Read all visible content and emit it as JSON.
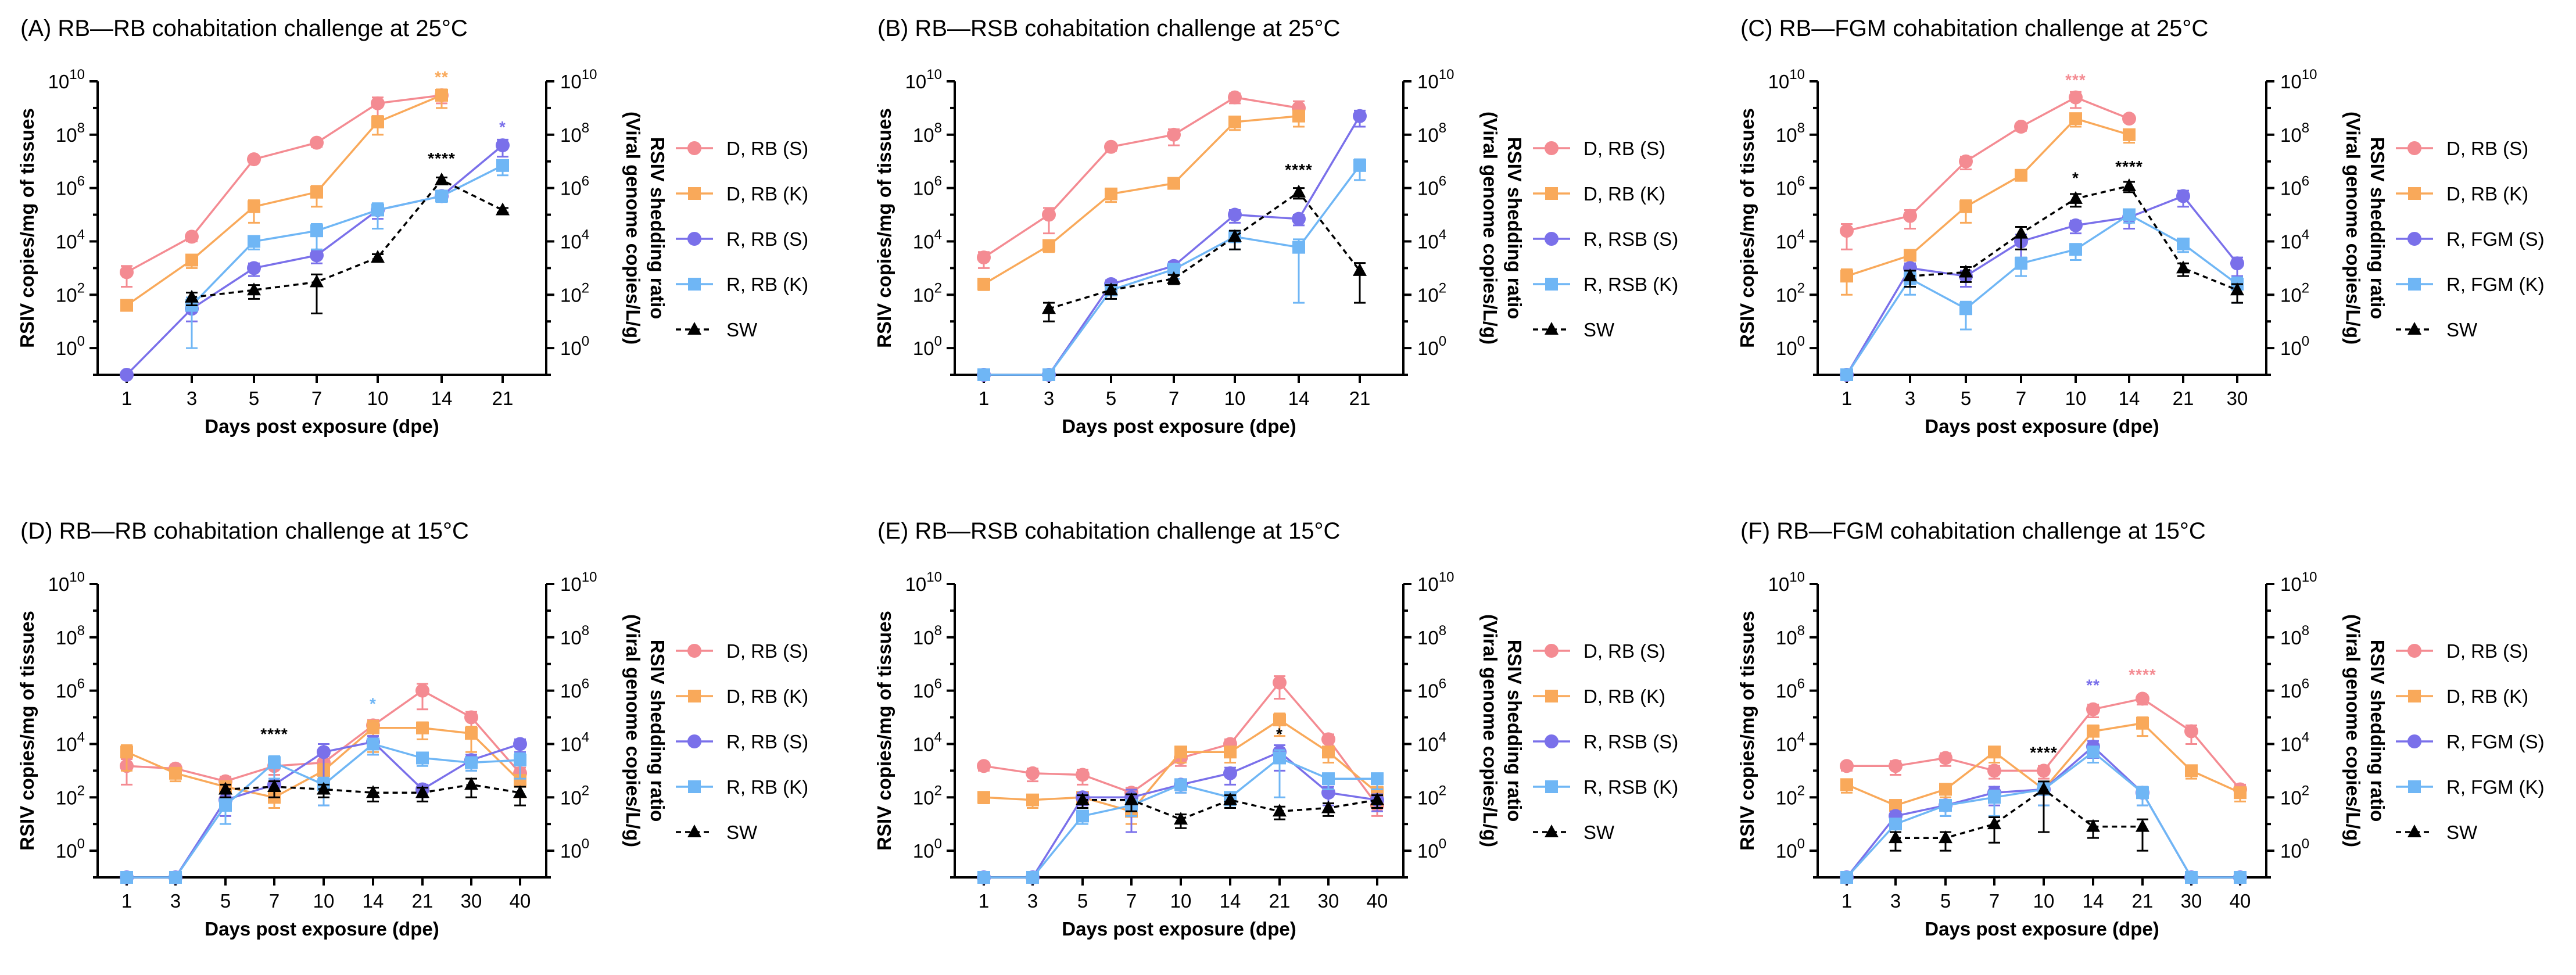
{
  "colors": {
    "D, RB (S)": "#F48B92",
    "D, RB (K)": "#F9A95A",
    "R, RB (S)": "#7A70EA",
    "R, RSB (S)": "#7A70EA",
    "R, FGM (S)": "#7A70EA",
    "R, RB (K)": "#6FB6F5",
    "R, RSB (K)": "#6FB6F5",
    "R, FGM (K)": "#6FB6F5",
    "SW": "#000000"
  },
  "chart_data": [
    {
      "type": "line",
      "title": "(A) RB—RB cohabitation challenge at 25°C",
      "xlabel": "Days post exposure (dpe)",
      "ylabel": "RSIV copies/mg of tissues",
      "y2label": "RSIV shedding ratio\n(Viral genome copies/L/g)",
      "yscale": "log",
      "ylim": [
        0.1,
        10000000000
      ],
      "categories": [
        "1",
        "3",
        "5",
        "7",
        "10",
        "14",
        "21"
      ],
      "legend": "right",
      "series": [
        {
          "name": "D, RB (S)",
          "marker": "circle",
          "values": [
            700,
            15000,
            12000000,
            50000000,
            1500000000,
            3000000000,
            null
          ],
          "err": [
            500,
            5000,
            2000000,
            15000000,
            1000000000,
            1500000000,
            null
          ]
        },
        {
          "name": "D, RB (K)",
          "marker": "square",
          "values": [
            40,
            2000,
            200000,
            700000,
            300000000,
            3000000000,
            null
          ],
          "err": [
            10,
            1000,
            150000,
            500000,
            200000000,
            2000000000,
            null
          ]
        },
        {
          "name": "R, RB (S)",
          "marker": "circle",
          "values": [
            0.1,
            30,
            1000,
            3000,
            150000,
            500000,
            40000000
          ],
          "err": [
            0,
            20,
            500,
            1500,
            80000,
            150000,
            25000000
          ]
        },
        {
          "name": "R, RB (K)",
          "marker": "square",
          "values": [
            null,
            40,
            10000,
            25000,
            150000,
            500000,
            7000000
          ],
          "err": [
            null,
            39,
            5000,
            20000,
            120000,
            200000,
            4000000
          ]
        },
        {
          "name": "SW",
          "marker": "triangle",
          "dashed": true,
          "values": [
            null,
            80,
            150,
            300,
            2500,
            2000000,
            150000
          ],
          "err": [
            null,
            40,
            80,
            280,
            800,
            500000,
            30000
          ]
        }
      ],
      "annotations": [
        {
          "text": "**",
          "x": "14",
          "y": 9000000000,
          "color": "#F9A95A"
        },
        {
          "text": "*",
          "x": "21",
          "y": 120000000,
          "color": "#7A70EA"
        },
        {
          "text": "****",
          "x": "14",
          "y": 8000000,
          "color": "#000000"
        }
      ]
    },
    {
      "type": "line",
      "title": "(B) RB—RSB cohabitation challenge at 25°C",
      "xlabel": "Days post exposure (dpe)",
      "ylabel": "RSIV copies/mg of tissues",
      "y2label": "RSIV shedding ratio\n(Viral genome copies/L/g)",
      "yscale": "log",
      "ylim": [
        0.1,
        10000000000
      ],
      "categories": [
        "1",
        "3",
        "5",
        "7",
        "10",
        "14",
        "21"
      ],
      "legend": "right",
      "series": [
        {
          "name": "D, RB (S)",
          "marker": "circle",
          "values": [
            2500,
            100000,
            35000000,
            100000000,
            2500000000,
            1000000000,
            null
          ],
          "err": [
            1500,
            80000,
            10000000,
            60000000,
            1000000000,
            800000000,
            null
          ]
        },
        {
          "name": "D, RB (K)",
          "marker": "square",
          "values": [
            250,
            7000,
            600000,
            1500000,
            300000000,
            500000000,
            null
          ],
          "err": [
            100,
            3000,
            300000,
            500000,
            150000000,
            300000000,
            null
          ]
        },
        {
          "name": "R, RSB (S)",
          "marker": "circle",
          "values": [
            0.1,
            0.1,
            250,
            1200,
            100000,
            70000,
            500000000
          ],
          "err": [
            0,
            0,
            100,
            500,
            50000,
            30000,
            300000000
          ]
        },
        {
          "name": "R, RSB (K)",
          "marker": "square",
          "values": [
            0.1,
            0.1,
            150,
            900,
            15000,
            6000,
            7000000
          ],
          "err": [
            0,
            0,
            80,
            500,
            10000,
            5950,
            5000000
          ]
        },
        {
          "name": "SW",
          "marker": "triangle",
          "dashed": true,
          "values": [
            null,
            30,
            150,
            400,
            15000,
            700000,
            800
          ],
          "err": [
            null,
            20,
            80,
            150,
            10000,
            300000,
            750
          ]
        }
      ],
      "annotations": [
        {
          "text": "****",
          "x": "14",
          "y": 3000000,
          "color": "#000000"
        }
      ]
    },
    {
      "type": "line",
      "title": "(C) RB—FGM cohabitation challenge at 25°C",
      "xlabel": "Days post exposure (dpe)",
      "ylabel": "RSIV copies/mg of tissues",
      "y2label": "RSIV shedding ratio\n(Viral genome copies/L/g)",
      "yscale": "log",
      "ylim": [
        0.1,
        10000000000
      ],
      "categories": [
        "1",
        "3",
        "5",
        "7",
        "10",
        "14",
        "21",
        "30"
      ],
      "legend": "right",
      "series": [
        {
          "name": "D, RB (S)",
          "marker": "circle",
          "values": [
            25000,
            90000,
            10000000,
            200000000,
            2500000000,
            400000000,
            null,
            null
          ],
          "err": [
            20000,
            60000,
            5000000,
            60000000,
            1500000000,
            100000000,
            null,
            null
          ]
        },
        {
          "name": "D, RB (K)",
          "marker": "square",
          "values": [
            500,
            3000,
            200000,
            3000000,
            400000000,
            100000000,
            null,
            null
          ],
          "err": [
            400,
            1500,
            150000,
            1000000,
            200000000,
            50000000,
            null,
            null
          ]
        },
        {
          "name": "R, FGM (S)",
          "marker": "circle",
          "values": [
            0.1,
            1000,
            500,
            10000,
            40000,
            80000,
            500000,
            1500
          ],
          "err": [
            0,
            500,
            300,
            8000,
            20000,
            50000,
            300000,
            1000
          ]
        },
        {
          "name": "R, FGM (K)",
          "marker": "square",
          "values": [
            0.1,
            400,
            30,
            1500,
            5000,
            100000,
            8000,
            250
          ],
          "err": [
            0,
            300,
            25,
            1000,
            3000,
            50000,
            4000,
            200
          ]
        },
        {
          "name": "SW",
          "marker": "triangle",
          "dashed": true,
          "values": [
            null,
            500,
            700,
            20000,
            400000,
            1200000,
            1000,
            150
          ],
          "err": [
            null,
            300,
            400,
            15000,
            200000,
            500000,
            500,
            100
          ]
        }
      ],
      "annotations": [
        {
          "text": "***",
          "x": "10",
          "y": 7000000000,
          "color": "#F48B92"
        },
        {
          "text": "*",
          "x": "10",
          "y": 1500000,
          "color": "#000000"
        },
        {
          "text": "****",
          "x": "14",
          "y": 4000000,
          "color": "#000000"
        }
      ]
    },
    {
      "type": "line",
      "title": "(D) RB—RB cohabitation challenge at 15°C",
      "xlabel": "Days post exposure (dpe)",
      "ylabel": "RSIV copies/mg of tissues",
      "y2label": "RSIV shedding ratio\n(Viral genome copies/L/g)",
      "yscale": "log",
      "ylim": [
        0.1,
        10000000000
      ],
      "categories": [
        "1",
        "3",
        "5",
        "7",
        "10",
        "14",
        "21",
        "30",
        "40"
      ],
      "legend": "right",
      "series": [
        {
          "name": "D, RB (S)",
          "marker": "circle",
          "values": [
            1500,
            1200,
            400,
            1500,
            2000,
            50000,
            1000000,
            100000,
            800
          ],
          "err": [
            1200,
            500,
            200,
            800,
            1500,
            30000,
            800000,
            60000,
            500
          ]
        },
        {
          "name": "D, RB (K)",
          "marker": "square",
          "values": [
            5000,
            800,
            250,
            100,
            1000,
            40000,
            40000,
            25000,
            400
          ],
          "err": [
            4000,
            400,
            150,
            60,
            800,
            35000,
            25000,
            20000,
            300
          ]
        },
        {
          "name": "R, RB (S)",
          "marker": "circle",
          "values": [
            0.1,
            0.1,
            80,
            300,
            5000,
            12000,
            200,
            2500,
            10000
          ],
          "err": [
            0,
            0,
            60,
            200,
            4950,
            8000,
            100,
            1500,
            5000
          ]
        },
        {
          "name": "R, RB (K)",
          "marker": "square",
          "values": [
            0.1,
            0.1,
            50,
            2000,
            300,
            10000,
            3000,
            2000,
            2500
          ],
          "err": [
            0,
            0,
            40,
            1500,
            250,
            6000,
            1500,
            1000,
            2000
          ]
        },
        {
          "name": "SW",
          "marker": "triangle",
          "dashed": true,
          "values": [
            null,
            null,
            200,
            250,
            200,
            150,
            150,
            300,
            150
          ],
          "err": [
            null,
            null,
            100,
            150,
            100,
            80,
            80,
            200,
            100
          ]
        }
      ],
      "annotations": [
        {
          "text": "****",
          "x": "7",
          "y": 15000,
          "color": "#000000"
        },
        {
          "text": "*",
          "x": "14",
          "y": 200000,
          "color": "#6FB6F5"
        }
      ]
    },
    {
      "type": "line",
      "title": "(E) RB—RSB cohabitation challenge at 15°C",
      "xlabel": "Days post exposure (dpe)",
      "ylabel": "RSIV copies/mg of tissues",
      "y2label": "RSIV shedding ratio\n(Viral genome copies/L/g)",
      "yscale": "log",
      "ylim": [
        0.1,
        10000000000
      ],
      "categories": [
        "1",
        "3",
        "5",
        "7",
        "10",
        "14",
        "21",
        "30",
        "40"
      ],
      "legend": "right",
      "series": [
        {
          "name": "D, RB (S)",
          "marker": "circle",
          "values": [
            1500,
            800,
            700,
            150,
            3000,
            10000,
            2000000,
            15000,
            50
          ],
          "err": [
            500,
            400,
            400,
            80,
            1500,
            5000,
            1500000,
            8000,
            30
          ]
        },
        {
          "name": "D, RB (K)",
          "marker": "square",
          "values": [
            100,
            80,
            100,
            30,
            5000,
            5000,
            80000,
            5000,
            150
          ],
          "err": [
            40,
            40,
            60,
            20,
            3000,
            3000,
            60000,
            3000,
            100
          ]
        },
        {
          "name": "R, RSB (S)",
          "marker": "circle",
          "values": [
            0.1,
            0.1,
            100,
            100,
            300,
            800,
            5000,
            150,
            80
          ],
          "err": [
            0,
            0,
            50,
            95,
            150,
            500,
            4000,
            100,
            50
          ]
        },
        {
          "name": "R, RSB (K)",
          "marker": "square",
          "values": [
            0.1,
            0.1,
            20,
            50,
            300,
            100,
            3000,
            500,
            500
          ],
          "err": [
            0,
            0,
            10,
            30,
            150,
            50,
            2900,
            300,
            300
          ]
        },
        {
          "name": "SW",
          "marker": "triangle",
          "dashed": true,
          "values": [
            null,
            null,
            80,
            80,
            15,
            80,
            30,
            40,
            80
          ],
          "err": [
            null,
            null,
            40,
            50,
            8,
            40,
            15,
            20,
            40
          ]
        }
      ],
      "annotations": [
        {
          "text": "*",
          "x": "21",
          "y": 15000,
          "color": "#000000"
        }
      ]
    },
    {
      "type": "line",
      "title": "(F) RB—FGM cohabitation challenge at 15°C",
      "xlabel": "Days post exposure (dpe)",
      "ylabel": "RSIV copies/mg of tissues",
      "y2label": "RSIV shedding ratio\n(Viral genome copies/L/g)",
      "yscale": "log",
      "ylim": [
        0.1,
        10000000000
      ],
      "categories": [
        "1",
        "3",
        "5",
        "7",
        "10",
        "14",
        "21",
        "30",
        "40"
      ],
      "legend": "right",
      "series": [
        {
          "name": "D, RB (S)",
          "marker": "circle",
          "values": [
            1500,
            1500,
            3000,
            1000,
            1000,
            200000,
            500000,
            30000,
            200
          ],
          "err": [
            500,
            800,
            1500,
            500,
            500,
            100000,
            200000,
            20000,
            100
          ]
        },
        {
          "name": "D, RB (K)",
          "marker": "square",
          "values": [
            300,
            50,
            200,
            5000,
            200,
            30000,
            60000,
            1000,
            150
          ],
          "err": [
            150,
            30,
            100,
            3000,
            150,
            20000,
            40000,
            500,
            80
          ]
        },
        {
          "name": "R, FGM (S)",
          "marker": "circle",
          "values": [
            0.1,
            20,
            50,
            150,
            200,
            8000,
            150,
            0.1,
            0.1
          ],
          "err": [
            0,
            10,
            30,
            100,
            150,
            5000,
            100,
            0,
            0
          ]
        },
        {
          "name": "R, FGM (K)",
          "marker": "square",
          "values": [
            0.1,
            10,
            50,
            100,
            200,
            5000,
            150,
            0.1,
            0.1
          ],
          "err": [
            0,
            5,
            30,
            80,
            150,
            3000,
            100,
            0,
            0
          ]
        },
        {
          "name": "SW",
          "marker": "triangle",
          "dashed": true,
          "values": [
            null,
            3,
            3,
            10,
            200,
            8,
            8,
            null,
            null
          ],
          "err": [
            null,
            2,
            2,
            8,
            195,
            5,
            7,
            null,
            null
          ]
        }
      ],
      "annotations": [
        {
          "text": "**",
          "x": "14",
          "y": 1000000,
          "color": "#7A70EA"
        },
        {
          "text": "****",
          "x": "21",
          "y": 2500000,
          "color": "#F48B92"
        },
        {
          "text": "****",
          "x": "10",
          "y": 3000,
          "color": "#000000"
        }
      ]
    }
  ]
}
